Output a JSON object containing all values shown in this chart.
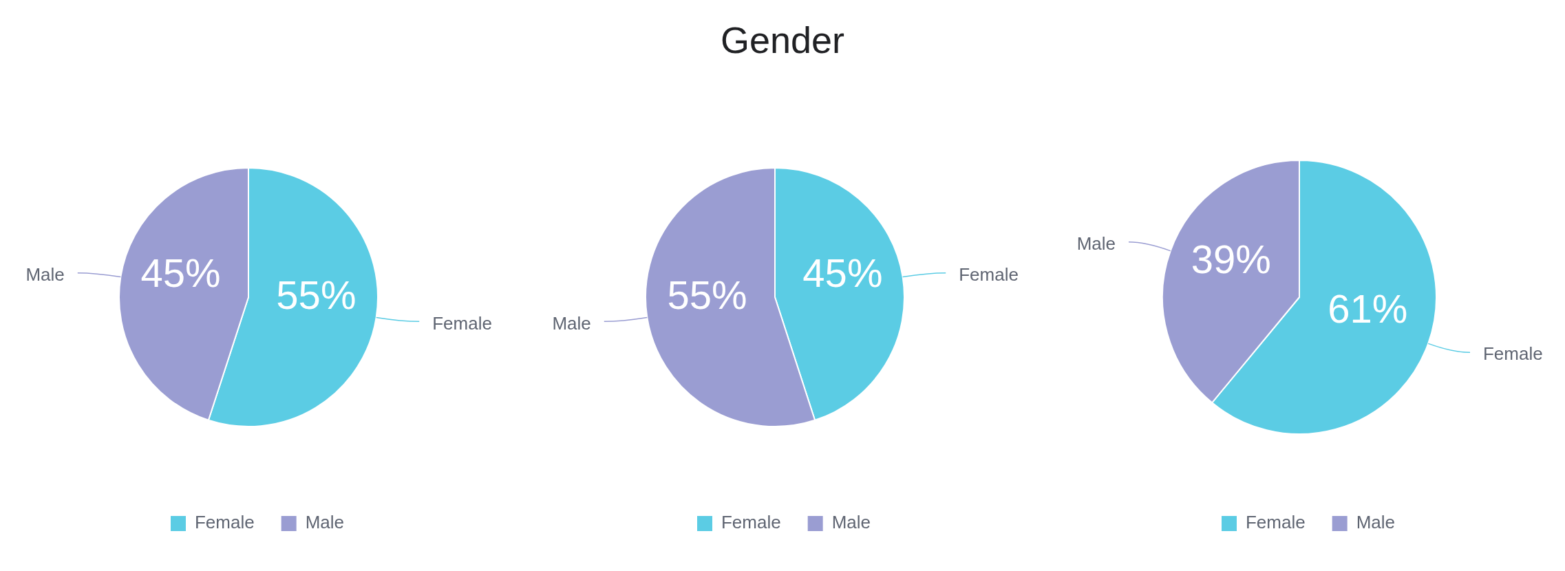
{
  "chart_data": [
    {
      "type": "pie",
      "categories": [
        "Female",
        "Male"
      ],
      "values": [
        55,
        45
      ],
      "value_labels": [
        "55%",
        "45%"
      ],
      "colors": [
        "#5bcce4",
        "#9a9dd2"
      ],
      "legend": "bottom"
    },
    {
      "type": "pie",
      "title": "Gender",
      "categories": [
        "Female",
        "Male"
      ],
      "values": [
        45,
        55
      ],
      "value_labels": [
        "45%",
        "55%"
      ],
      "colors": [
        "#5bcce4",
        "#9a9dd2"
      ],
      "legend": "bottom"
    },
    {
      "type": "pie",
      "categories": [
        "Female",
        "Male"
      ],
      "values": [
        61,
        39
      ],
      "value_labels": [
        "61%",
        "39%"
      ],
      "colors": [
        "#5bcce4",
        "#9a9dd2"
      ],
      "legend": "bottom"
    }
  ]
}
